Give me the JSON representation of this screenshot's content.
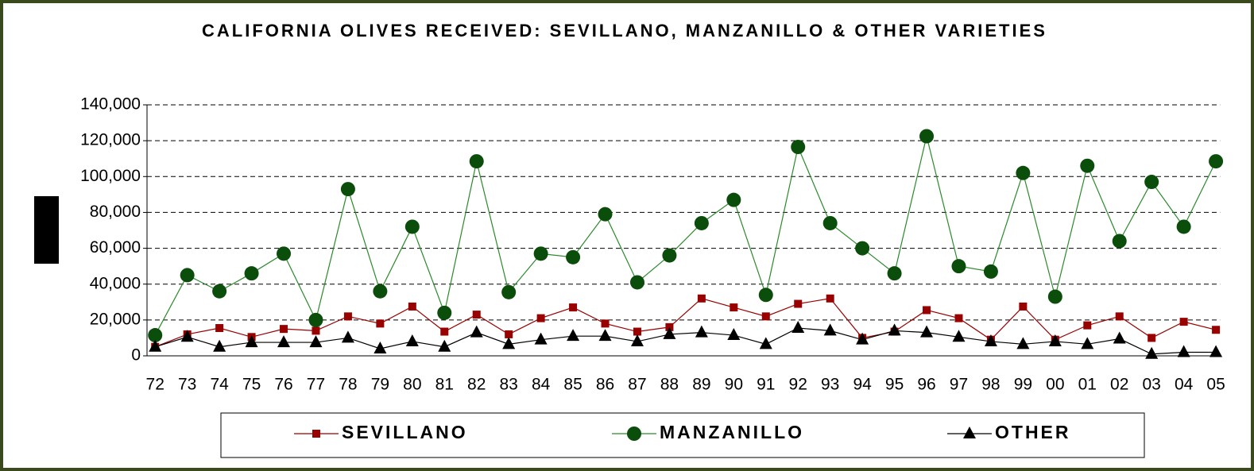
{
  "chart_data": {
    "type": "line",
    "title": "CALIFORNIA OLIVES RECEIVED:  SEVILLANO, MANZANILLO & OTHER VARIETIES",
    "categories": [
      "72",
      "73",
      "74",
      "75",
      "76",
      "77",
      "78",
      "79",
      "80",
      "81",
      "82",
      "83",
      "84",
      "85",
      "86",
      "87",
      "88",
      "89",
      "90",
      "91",
      "92",
      "93",
      "94",
      "95",
      "96",
      "97",
      "98",
      "99",
      "00",
      "01",
      "02",
      "03",
      "04",
      "05"
    ],
    "series": [
      {
        "name": "SEVILLANO",
        "color": "#990000",
        "marker": "square",
        "values": [
          5000,
          12000,
          15500,
          10500,
          15000,
          14000,
          22000,
          18000,
          27500,
          13500,
          23000,
          12000,
          21000,
          27000,
          18000,
          13500,
          16000,
          32000,
          27000,
          22000,
          29000,
          32000,
          10000,
          13500,
          25500,
          21000,
          9000,
          27500,
          9000,
          17000,
          22000,
          10000,
          19000,
          14500
        ]
      },
      {
        "name": "MANZANILLO",
        "color": "#0b4d0b",
        "marker": "circle",
        "values": [
          11500,
          45000,
          36000,
          46000,
          57000,
          20000,
          93000,
          36000,
          72000,
          24000,
          108500,
          35500,
          57000,
          55000,
          79000,
          41000,
          56000,
          74000,
          87000,
          34000,
          116500,
          74000,
          60000,
          46000,
          122500,
          50000,
          47000,
          102000,
          33000,
          106000,
          64000,
          97000,
          72000,
          108500
        ]
      },
      {
        "name": "OTHER",
        "color": "#000000",
        "marker": "triangle",
        "values": [
          5000,
          10500,
          5000,
          7500,
          7500,
          7500,
          10000,
          4000,
          8000,
          5000,
          13000,
          6500,
          9000,
          11000,
          11000,
          8000,
          12000,
          13000,
          11500,
          6500,
          15500,
          14000,
          9000,
          14000,
          13000,
          10500,
          8000,
          6500,
          8000,
          6500,
          9500,
          1000,
          2000,
          2000
        ]
      }
    ],
    "ylim": [
      0,
      140000
    ],
    "yticks": [
      0,
      {
        "value": 20000,
        "label": "20,000"
      },
      {
        "value": 40000,
        "label": "40,000"
      },
      {
        "value": 60000,
        "label": "60,000"
      },
      {
        "value": 80000,
        "label": "80,000"
      },
      {
        "value": 100000,
        "label": "100,000"
      },
      {
        "value": 120000,
        "label": "120,000"
      },
      {
        "value": 140000,
        "label": "140,000"
      }
    ],
    "grid": true,
    "legend": "bottom"
  }
}
